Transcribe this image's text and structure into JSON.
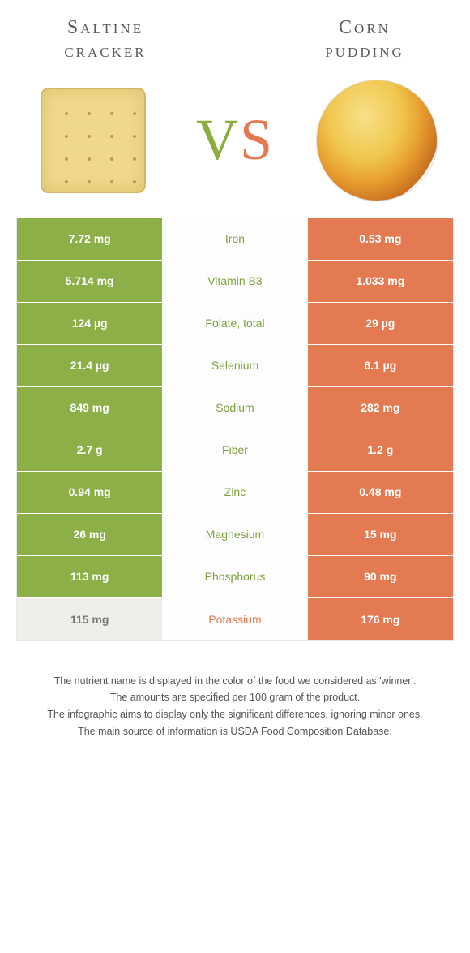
{
  "header": {
    "left_title_l1": "Saltine",
    "left_title_l2": "cracker",
    "right_title_l1": "Corn",
    "right_title_l2": "pudding",
    "vs_v": "V",
    "vs_s": "S"
  },
  "colors": {
    "green": "#8cb047",
    "orange": "#e47a52",
    "gray": "#efeeea"
  },
  "rows": [
    {
      "nutrient": "Iron",
      "left": "7.72 mg",
      "right": "0.53 mg",
      "winner": "left"
    },
    {
      "nutrient": "Vitamin B3",
      "left": "5.714 mg",
      "right": "1.033 mg",
      "winner": "left"
    },
    {
      "nutrient": "Folate, total",
      "left": "124 µg",
      "right": "29 µg",
      "winner": "left"
    },
    {
      "nutrient": "Selenium",
      "left": "21.4 µg",
      "right": "6.1 µg",
      "winner": "left"
    },
    {
      "nutrient": "Sodium",
      "left": "849 mg",
      "right": "282 mg",
      "winner": "left"
    },
    {
      "nutrient": "Fiber",
      "left": "2.7 g",
      "right": "1.2 g",
      "winner": "left"
    },
    {
      "nutrient": "Zinc",
      "left": "0.94 mg",
      "right": "0.48 mg",
      "winner": "left"
    },
    {
      "nutrient": "Magnesium",
      "left": "26 mg",
      "right": "15 mg",
      "winner": "left"
    },
    {
      "nutrient": "Phosphorus",
      "left": "113 mg",
      "right": "90 mg",
      "winner": "left"
    },
    {
      "nutrient": "Potassium",
      "left": "115 mg",
      "right": "176 mg",
      "winner": "right"
    }
  ],
  "footnote": {
    "l1": "The nutrient name is displayed in the color of the food we considered as 'winner'.",
    "l2": "The amounts are specified per 100 gram of the product.",
    "l3": "The infographic aims to display only the significant differences, ignoring minor ones.",
    "l4": "The main source of information is USDA Food Composition Database."
  }
}
